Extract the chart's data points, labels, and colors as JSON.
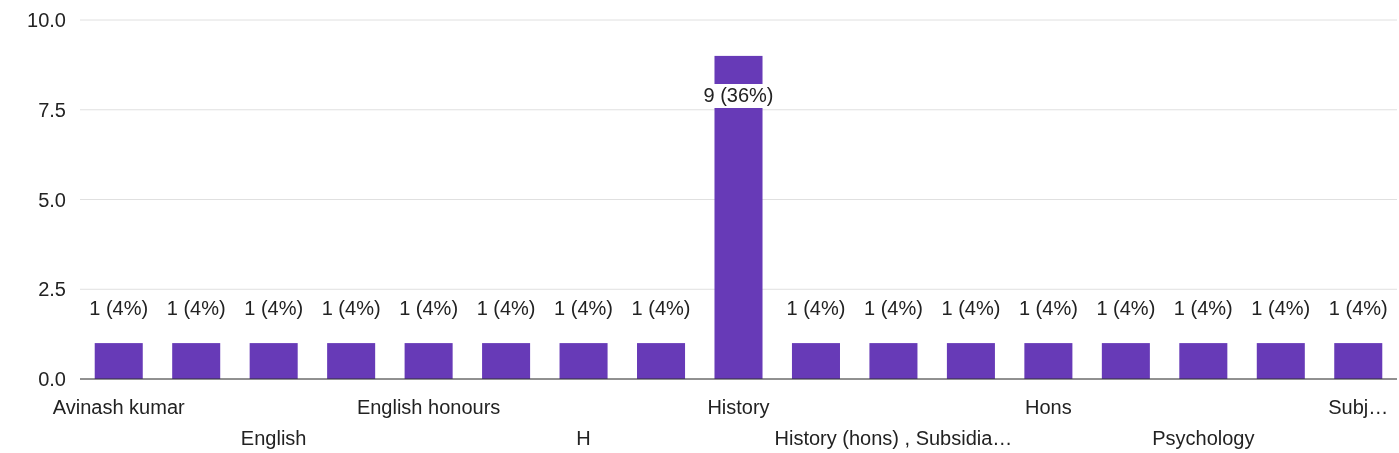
{
  "chart_data": {
    "type": "bar",
    "categories": [
      "Avinash kumar",
      null,
      "English",
      null,
      "English honours",
      null,
      "H",
      null,
      "History",
      null,
      "History (hons) , Subsidia…",
      null,
      "Hons",
      null,
      "Psychology",
      null,
      "Subj…"
    ],
    "values": [
      1,
      1,
      1,
      1,
      1,
      1,
      1,
      1,
      9,
      1,
      1,
      1,
      1,
      1,
      1,
      1,
      1
    ],
    "value_labels": [
      "1 (4%)",
      "1 (4%)",
      "1 (4%)",
      "1 (4%)",
      "1 (4%)",
      "1 (4%)",
      "1 (4%)",
      "1 (4%)",
      "9 (36%)",
      "1 (4%)",
      "1 (4%)",
      "1 (4%)",
      "1 (4%)",
      "1 (4%)",
      "1 (4%)",
      "1 (4%)",
      "1 (4%)"
    ],
    "color": "#673ab7",
    "ylim": [
      0,
      10
    ],
    "yticks": [
      {
        "value": 0,
        "label": "0.0"
      },
      {
        "value": 2.5,
        "label": "2.5"
      },
      {
        "value": 5,
        "label": "5.0"
      },
      {
        "value": 7.5,
        "label": "7.5"
      },
      {
        "value": 10,
        "label": "10.0"
      }
    ],
    "grid": true
  }
}
